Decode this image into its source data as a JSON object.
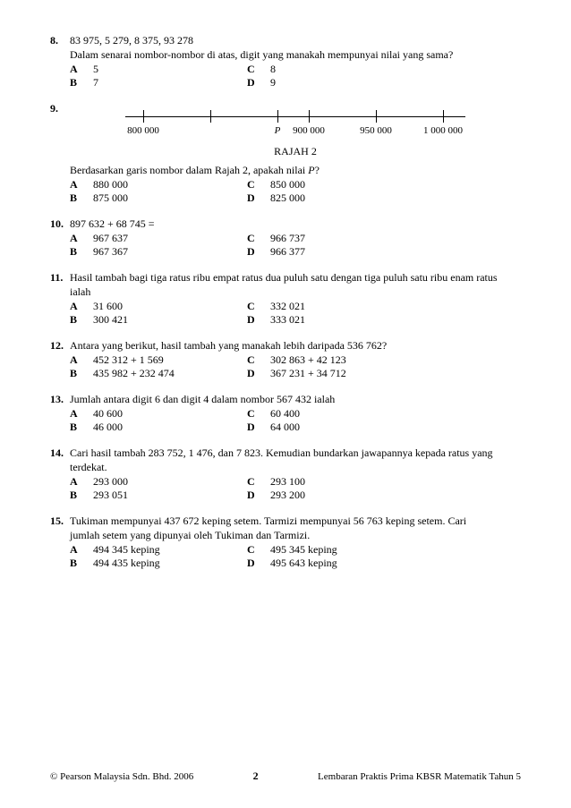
{
  "questions": [
    {
      "num": "8.",
      "lines": [
        "83 975, 5 279, 8 375, 93 278",
        "Dalam senarai nombor-nombor di atas, digit yang manakah mempunyai nilai yang sama?"
      ],
      "opts": {
        "A": "5",
        "B": "7",
        "C": "8",
        "D": "9"
      }
    },
    {
      "num": "9.",
      "lines": [],
      "figure": {
        "caption": "RAJAH 2",
        "ticks": [
          {
            "pos": 20,
            "label": "800 000"
          },
          {
            "pos": 95,
            "label": ""
          },
          {
            "pos": 170,
            "label_html": "P",
            "italic": true
          },
          {
            "pos": 205,
            "label": "900 000"
          },
          {
            "pos": 280,
            "label": "950 000"
          },
          {
            "pos": 355,
            "label": "1 000 000"
          }
        ]
      },
      "post_lines": [
        "Berdasarkan garis nombor dalam Rajah 2, apakah nilai P?"
      ],
      "opts": {
        "A": "880 000",
        "B": "875 000",
        "C": "850 000",
        "D": "825 000"
      }
    },
    {
      "num": "10.",
      "lines": [
        "897 632 + 68 745 ="
      ],
      "opts": {
        "A": "967 637",
        "B": "967 367",
        "C": "966 737",
        "D": "966 377"
      }
    },
    {
      "num": "11.",
      "lines": [
        "Hasil tambah bagi tiga ratus ribu empat ratus dua puluh satu dengan tiga puluh satu ribu enam ratus",
        "ialah"
      ],
      "opts": {
        "A": "31 600",
        "B": "300 421",
        "C": "332 021",
        "D": "333 021"
      }
    },
    {
      "num": "12.",
      "lines": [
        "Antara yang berikut, hasil tambah yang manakah lebih daripada 536 762?"
      ],
      "opts": {
        "A": "452 312 + 1 569",
        "B": "435 982 + 232 474",
        "C": "302 863 + 42 123",
        "D": "367 231 + 34 712"
      }
    },
    {
      "num": "13.",
      "lines": [
        "Jumlah antara digit 6 dan digit 4 dalam nombor 567 432 ialah"
      ],
      "opts": {
        "A": "40 600",
        "B": "46 000",
        "C": "60 400",
        "D": "64 000"
      }
    },
    {
      "num": "14.",
      "lines": [
        "Cari hasil tambah 283 752, 1 476, dan 7 823. Kemudian bundarkan jawapannya kepada ratus yang",
        "terdekat."
      ],
      "opts": {
        "A": "293 000",
        "B": "293 051",
        "C": "293 100",
        "D": "293 200"
      }
    },
    {
      "num": "15.",
      "lines": [
        "Tukiman mempunyai 437 672 keping setem. Tarmizi mempunyai 56 763 keping setem. Cari",
        "jumlah setem yang dipunyai oleh Tukiman dan Tarmizi."
      ],
      "opts": {
        "A": "494 345 keping",
        "B": "494 435 keping",
        "C": "495 345 keping",
        "D": "495 643 keping"
      }
    }
  ],
  "footer": {
    "left": "© Pearson Malaysia Sdn. Bhd. 2006",
    "page": "2",
    "right": "Lembaran Praktis Prima KBSR Matematik Tahun 5"
  }
}
